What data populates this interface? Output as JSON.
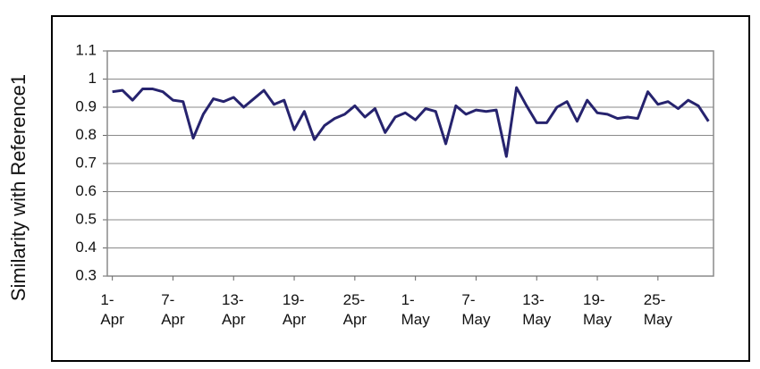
{
  "chart_data": {
    "type": "line",
    "y_label": "Similarity with Reference1",
    "categories": [
      "1-Apr",
      null,
      null,
      null,
      null,
      null,
      "7-Apr",
      null,
      null,
      null,
      null,
      null,
      "13-Apr",
      null,
      null,
      null,
      null,
      null,
      "19-Apr",
      null,
      null,
      null,
      null,
      null,
      "25-Apr",
      null,
      null,
      null,
      null,
      null,
      "1-May",
      null,
      null,
      null,
      null,
      null,
      "7-May",
      null,
      null,
      null,
      null,
      null,
      "13-May",
      null,
      null,
      null,
      null,
      null,
      "19-May",
      null,
      null,
      null,
      null,
      null,
      "25-May",
      null,
      null,
      null,
      null,
      null
    ],
    "values": [
      0.955,
      0.96,
      0.925,
      0.965,
      0.965,
      0.955,
      0.925,
      0.92,
      0.79,
      0.875,
      0.93,
      0.92,
      0.935,
      0.9,
      0.93,
      0.96,
      0.91,
      0.925,
      0.82,
      0.885,
      0.785,
      0.835,
      0.86,
      0.875,
      0.905,
      0.865,
      0.895,
      0.81,
      0.865,
      0.88,
      0.855,
      0.895,
      0.885,
      0.77,
      0.905,
      0.875,
      0.89,
      0.885,
      0.89,
      0.725,
      0.97,
      0.905,
      0.845,
      0.845,
      0.9,
      0.92,
      0.85,
      0.925,
      0.88,
      0.875,
      0.86,
      0.865,
      0.86,
      0.955,
      0.91,
      0.92,
      0.895,
      0.925,
      0.905,
      0.85
    ],
    "color": "#26236e",
    "ylim": [
      0.3,
      1.1
    ],
    "yticks": [
      0.3,
      0.4,
      0.5,
      0.6,
      0.7,
      0.8,
      0.9,
      1,
      1.1
    ],
    "grid": true
  }
}
